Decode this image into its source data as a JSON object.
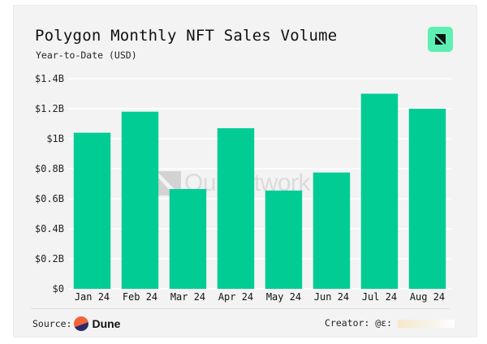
{
  "header": {
    "title": "Polygon Monthly NFT Sales Volume",
    "subtitle": "Year-to-Date (USD)",
    "logo_icon": "ournetwork-logo-icon"
  },
  "watermark": {
    "text": "OurNetwork"
  },
  "footer": {
    "source_label": "Source:",
    "source_name": "Dune",
    "source_icon": "dune-logo-icon",
    "creator_label": "Creator: @ε:"
  },
  "colors": {
    "bar": "#00cc94",
    "background": "#f3f3f3",
    "logo": "#5ef0b3",
    "gridline": "#ffffff"
  },
  "chart_data": {
    "type": "bar",
    "title": "Polygon Monthly NFT Sales Volume",
    "subtitle": "Year-to-Date (USD)",
    "xlabel": "",
    "ylabel": "",
    "categories": [
      "Jan 24",
      "Feb 24",
      "Mar 24",
      "Apr 24",
      "May 24",
      "Jun 24",
      "Jul 24",
      "Aug 24"
    ],
    "values": [
      1.04,
      1.18,
      0.665,
      1.07,
      0.655,
      0.775,
      1.3,
      1.2
    ],
    "value_unit": "USD billions",
    "ylim": [
      0,
      1.4
    ],
    "yticks": [
      0,
      0.2,
      0.4,
      0.6,
      0.8,
      1.0,
      1.2,
      1.4
    ],
    "ytick_labels": [
      "$0",
      "$0.2B",
      "$0.4B",
      "$0.6B",
      "$0.8B",
      "$1B",
      "$1.2B",
      "$1.4B"
    ],
    "grid": true,
    "legend": "none"
  }
}
